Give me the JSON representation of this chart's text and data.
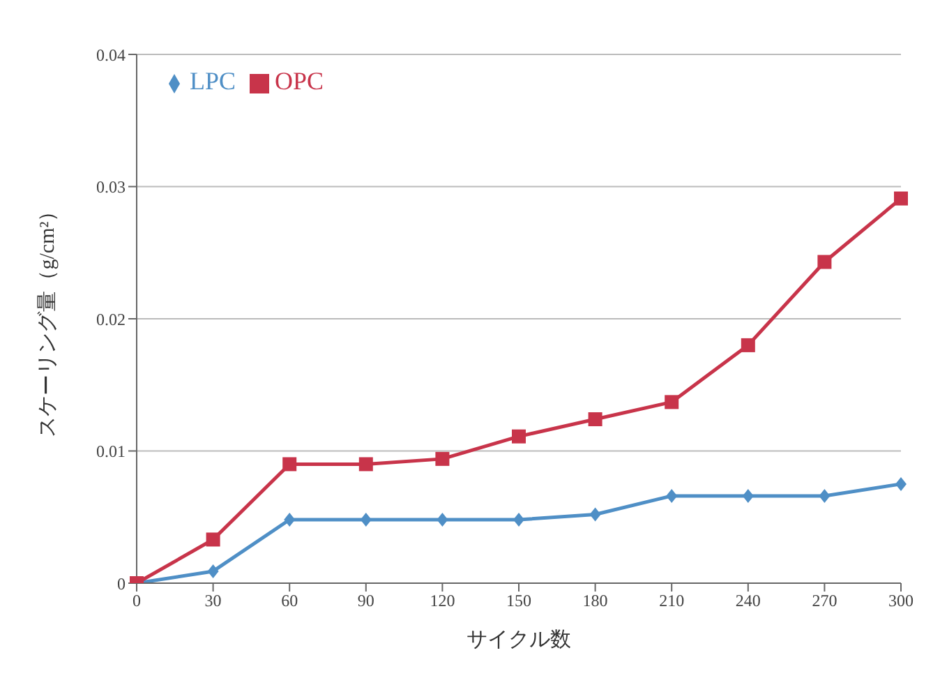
{
  "chart_data": {
    "type": "line",
    "xlabel": "サイクル数",
    "ylabel": "スケーリング量（g/cm²）",
    "categories": [
      "0",
      "30",
      "60",
      "90",
      "120",
      "150",
      "180",
      "210",
      "240",
      "270",
      "300"
    ],
    "series": [
      {
        "name": "LPC",
        "color": "#4f8fc6",
        "marker": "diamond",
        "values": [
          0,
          0.0009,
          0.0048,
          0.0048,
          0.0048,
          0.0048,
          0.0052,
          0.0066,
          0.0066,
          0.0066,
          0.0075
        ]
      },
      {
        "name": "OPC",
        "color": "#c8344a",
        "marker": "square",
        "values": [
          0,
          0.0033,
          0.009,
          0.009,
          0.0094,
          0.0111,
          0.0124,
          0.0137,
          0.018,
          0.0243,
          0.0291
        ]
      }
    ],
    "ylim": [
      0,
      0.04
    ],
    "yticks": [
      0,
      0.01,
      0.02,
      0.03,
      0.04
    ],
    "grid": "y",
    "legend": "top left"
  }
}
